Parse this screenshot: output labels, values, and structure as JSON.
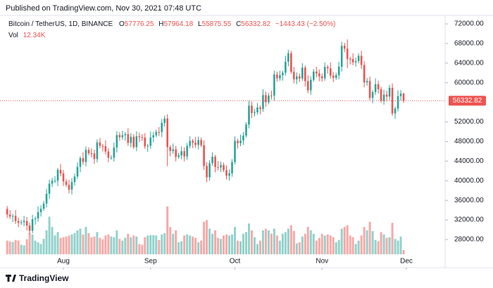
{
  "chart_data": {
    "type": "candlestick",
    "published": "Published on TradingView.com, Nov 30, 2021 07:48 UTC",
    "title": "Bitcoin / TetherUS, 1D, BINANCE",
    "ohlc_labels": [
      "O",
      "H",
      "L",
      "C"
    ],
    "change": "−1443.43 (−2.50%)",
    "volume_label": "Vol",
    "volume_value_label": "12.34K",
    "brand": "TradingView",
    "up_color": "#26a69a",
    "down_color": "#ef5350",
    "open": [
      34240,
      33100,
      32700,
      32820,
      31780,
      31400,
      31530,
      31800,
      30840,
      29790,
      32140,
      32300,
      33590,
      34270,
      35350,
      37340,
      39400,
      39990,
      40010,
      42230,
      41490,
      39850,
      39150,
      38200,
      39720,
      40870,
      42840,
      44610,
      43830,
      46290,
      45600,
      45570,
      44430,
      47830,
      47110,
      47050,
      45960,
      44690,
      44710,
      46760,
      49320,
      48870,
      49290,
      49520,
      47710,
      48970,
      46850,
      49070,
      48900,
      48810,
      46990,
      47130,
      48830,
      49280,
      49940,
      49920,
      51790,
      52700,
      46860,
      46070,
      46400,
      44850,
      45170,
      46030,
      44960,
      47110,
      48140,
      47760,
      47300,
      48310,
      47250,
      43010,
      40700,
      43570,
      44890,
      42810,
      42700,
      43210,
      42170,
      41030,
      41520,
      43820,
      48140,
      47660,
      48200,
      49220,
      51470,
      55320,
      53800,
      53960,
      54960,
      54660,
      57470,
      56010,
      57370,
      57360,
      61670,
      60880,
      61530,
      62040,
      64280,
      66000,
      62210,
      60690,
      61290,
      60860,
      63080,
      60330,
      58450,
      60590,
      62270,
      61890,
      61300,
      60910,
      63220,
      62940,
      61450,
      61000,
      61530,
      63270,
      67530,
      66940,
      64880,
      64810,
      64160,
      64400,
      65500,
      63610,
      60060,
      60360,
      56900,
      58100,
      59700,
      58670,
      56300,
      57560,
      57160,
      58960,
      53720,
      54720,
      57270,
      57776.25
    ],
    "high": [
      34840,
      34000,
      33220,
      34020,
      32480,
      32030,
      32800,
      32600,
      31440,
      33040,
      32700,
      34790,
      34970,
      35850,
      38340,
      40200,
      40590,
      40910,
      42630,
      43430,
      42190,
      40350,
      40150,
      40520,
      41470,
      43740,
      45010,
      45810,
      46990,
      46790,
      46600,
      46370,
      48430,
      48730,
      47510,
      48250,
      46660,
      45210,
      47760,
      50120,
      49920,
      50190,
      49920,
      50720,
      49670,
      49470,
      50070,
      49870,
      49500,
      49710,
      47530,
      50030,
      49980,
      50440,
      50940,
      52590,
      53300,
      53600,
      47260,
      47600,
      47100,
      45670,
      47030,
      46830,
      47710,
      49040,
      48540,
      48960,
      49010,
      48810,
      48250,
      43810,
      44170,
      45790,
      45290,
      44010,
      43910,
      43710,
      43170,
      42320,
      44420,
      49040,
      48540,
      49400,
      49920,
      51970,
      56320,
      56120,
      54560,
      55860,
      55360,
      58670,
      58170,
      57870,
      58370,
      62470,
      62270,
      62430,
      62440,
      65480,
      66700,
      66500,
      63210,
      62090,
      61890,
      63980,
      63480,
      61530,
      61290,
      62770,
      63270,
      62690,
      61900,
      64120,
      63620,
      64140,
      62150,
      62030,
      64270,
      68330,
      68130,
      68840,
      65280,
      66010,
      65100,
      66000,
      66500,
      64410,
      60960,
      61260,
      58500,
      60900,
      60400,
      59170,
      58560,
      58360,
      59560,
      59860,
      55120,
      58470,
      58480,
      57964.18
    ],
    "low": [
      32400,
      32200,
      31600,
      31180,
      30500,
      31000,
      30730,
      29840,
      29090,
      29290,
      31040,
      31700,
      32690,
      33870,
      34550,
      36340,
      38700,
      39490,
      38910,
      40890,
      38950,
      38750,
      37400,
      37200,
      39020,
      40370,
      41740,
      43230,
      42930,
      45200,
      44770,
      43430,
      43730,
      46610,
      45950,
      45360,
      43790,
      44290,
      43910,
      45760,
      48170,
      48370,
      48190,
      47110,
      46810,
      46450,
      46050,
      47900,
      48110,
      46490,
      45890,
      46530,
      47930,
      48880,
      49120,
      48920,
      51090,
      42960,
      44970,
      45470,
      43950,
      44450,
      44370,
      43960,
      44260,
      46610,
      46660,
      46700,
      46400,
      46850,
      42210,
      39700,
      40000,
      43070,
      41710,
      42100,
      41800,
      41770,
      40230,
      40030,
      40820,
      43320,
      46560,
      47060,
      47300,
      48820,
      50670,
      52800,
      53100,
      53460,
      53560,
      54060,
      55110,
      55610,
      56560,
      56360,
      60180,
      60380,
      60430,
      61440,
      63380,
      61810,
      59890,
      59690,
      60160,
      60360,
      59230,
      57850,
      57550,
      60190,
      61090,
      60300,
      60210,
      60410,
      61840,
      60850,
      60100,
      60600,
      60730,
      62270,
      66240,
      63000,
      63710,
      63560,
      63260,
      64000,
      62810,
      59060,
      59360,
      56400,
      55800,
      57500,
      57770,
      55900,
      55500,
      56160,
      56460,
      53220,
      52620,
      54120,
      56370,
      55875.55
    ],
    "close": [
      33100,
      32700,
      32820,
      31780,
      31400,
      31530,
      31800,
      30840,
      29790,
      32140,
      32300,
      33590,
      34270,
      35350,
      37340,
      39400,
      39990,
      40010,
      42230,
      41490,
      39850,
      39150,
      38200,
      39720,
      40870,
      42840,
      44610,
      43830,
      46290,
      45600,
      45570,
      44430,
      47830,
      47110,
      47050,
      45960,
      44690,
      44710,
      46760,
      49320,
      48870,
      49290,
      49520,
      47710,
      48970,
      46850,
      49070,
      48900,
      48810,
      46990,
      47130,
      48830,
      49280,
      49940,
      49920,
      51790,
      52700,
      46860,
      46070,
      46400,
      44850,
      45170,
      46030,
      44960,
      47110,
      48140,
      47760,
      47300,
      48310,
      47250,
      43010,
      40700,
      43570,
      44890,
      42810,
      42700,
      43210,
      42170,
      41030,
      41520,
      43820,
      48140,
      47660,
      48200,
      49220,
      51470,
      55320,
      53800,
      53960,
      54960,
      54660,
      57470,
      56010,
      57370,
      57360,
      61670,
      60880,
      61530,
      62040,
      64280,
      66000,
      62210,
      60690,
      61290,
      60860,
      63080,
      60330,
      58450,
      60590,
      62270,
      61890,
      61300,
      60910,
      63220,
      62940,
      61450,
      61000,
      61530,
      63270,
      67530,
      66940,
      64880,
      64810,
      64160,
      64400,
      65500,
      63610,
      60060,
      60360,
      56900,
      58100,
      59700,
      58670,
      56300,
      57560,
      57160,
      58960,
      53720,
      54720,
      57270,
      57776.25,
      56332.82
    ],
    "volume": [
      40,
      38,
      36,
      42,
      40,
      28,
      26,
      44,
      62,
      58,
      40,
      35,
      30,
      45,
      70,
      110,
      80,
      55,
      65,
      48,
      50,
      52,
      55,
      58,
      62,
      70,
      75,
      58,
      80,
      62,
      50,
      52,
      65,
      48,
      44,
      55,
      58,
      52,
      50,
      70,
      45,
      40,
      48,
      60,
      50,
      55,
      52,
      30,
      28,
      50,
      55,
      56,
      56,
      55,
      42,
      58,
      62,
      140,
      80,
      60,
      70,
      35,
      38,
      55,
      58,
      55,
      52,
      48,
      35,
      40,
      95,
      100,
      75,
      60,
      70,
      48,
      45,
      55,
      58,
      55,
      58,
      80,
      40,
      38,
      60,
      65,
      90,
      70,
      50,
      30,
      40,
      70,
      75,
      70,
      60,
      75,
      55,
      40,
      60,
      65,
      75,
      85,
      68,
      32,
      35,
      52,
      60,
      80,
      70,
      60,
      40,
      48,
      60,
      55,
      58,
      55,
      50,
      35,
      42,
      75,
      80,
      85,
      55,
      50,
      30,
      40,
      55,
      80,
      70,
      95,
      68,
      42,
      38,
      65,
      58,
      48,
      50,
      92,
      45,
      40,
      52,
      12.34
    ],
    "volume_ylim": [
      0,
      370
    ],
    "xlim": [
      -2.55,
      155.77
    ],
    "xticks": [
      {
        "value": 20,
        "label": "Aug"
      },
      {
        "value": 51,
        "label": "Sep"
      },
      {
        "value": 81,
        "label": "Oct"
      },
      {
        "value": 112,
        "label": "Nov"
      },
      {
        "value": 142,
        "label": "Dec"
      }
    ],
    "ylim": [
      22270,
      73720
    ],
    "yticks": [
      {
        "value": 28000,
        "label": "28000.00"
      },
      {
        "value": 32000,
        "label": "32000.00"
      },
      {
        "value": 36000,
        "label": "36000.00"
      },
      {
        "value": 40000,
        "label": "40000.00"
      },
      {
        "value": 44000,
        "label": "44000.00"
      },
      {
        "value": 48000,
        "label": "48000.00"
      },
      {
        "value": 52000,
        "label": "52000.00"
      },
      {
        "value": 60000,
        "label": "60000.00"
      },
      {
        "value": 64000,
        "label": "64000.00"
      },
      {
        "value": 68000,
        "label": "68000.00"
      },
      {
        "value": 72000,
        "label": "72000.00"
      }
    ]
  }
}
